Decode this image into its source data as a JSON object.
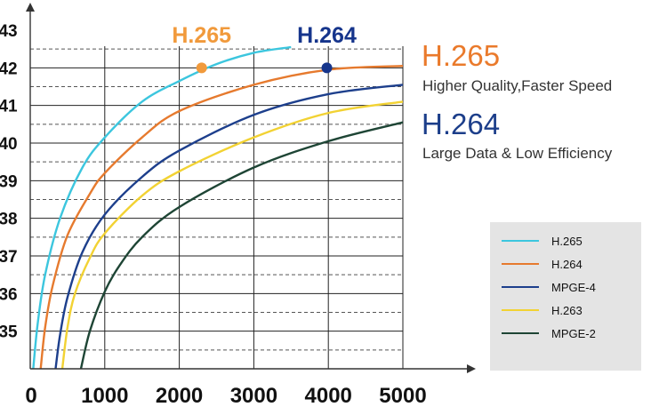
{
  "chart_data": {
    "type": "line",
    "x_ticks": [
      "0",
      "1000",
      "2000",
      "3000",
      "4000",
      "5000"
    ],
    "y_ticks": [
      "35",
      "36",
      "37",
      "38",
      "39",
      "40",
      "41",
      "42",
      "43"
    ],
    "xlim": [
      0,
      5000
    ],
    "ylim": [
      34,
      43
    ],
    "grid": true,
    "legend_position": "bottom-right",
    "series": [
      {
        "name": "H.265",
        "color": "#3cc6de",
        "x": [
          40,
          100,
          200,
          400,
          700,
          1000,
          1500,
          2000,
          2500,
          3000,
          3500
        ],
        "y": [
          34,
          35.2,
          36.5,
          38.0,
          39.35,
          40.15,
          41.1,
          41.65,
          42.1,
          42.4,
          42.55
        ]
      },
      {
        "name": "H.264",
        "color": "#e67a2e",
        "x": [
          140,
          200,
          300,
          500,
          800,
          1000,
          1500,
          2000,
          3000,
          4000,
          5000
        ],
        "y": [
          34,
          35.1,
          36.2,
          37.55,
          38.65,
          39.2,
          40.15,
          40.85,
          41.55,
          41.95,
          42.05
        ]
      },
      {
        "name": "MPGE-4",
        "color": "#1d3f8c",
        "x": [
          340,
          400,
          500,
          700,
          1000,
          1500,
          2000,
          3000,
          4000,
          5000
        ],
        "y": [
          34,
          34.9,
          35.9,
          37.1,
          38.1,
          39.1,
          39.8,
          40.75,
          41.3,
          41.55
        ]
      },
      {
        "name": "H.263",
        "color": "#f2d233",
        "x": [
          430,
          500,
          600,
          800,
          1000,
          1500,
          2000,
          3000,
          4000,
          5000
        ],
        "y": [
          34,
          35.1,
          36.0,
          36.95,
          37.6,
          38.6,
          39.25,
          40.15,
          40.8,
          41.1
        ]
      },
      {
        "name": "MPGE-2",
        "color": "#1e4535",
        "x": [
          680,
          800,
          1000,
          1200,
          1500,
          2000,
          3000,
          4000,
          5000
        ],
        "y": [
          34,
          35.0,
          36.05,
          36.75,
          37.5,
          38.3,
          39.35,
          40.05,
          40.55
        ]
      }
    ],
    "annotations": [
      {
        "text": "H.265",
        "color": "#f19a3c",
        "point_x": 2300,
        "point_y": 42.0
      },
      {
        "text": "H.264",
        "color": "#16358c",
        "point_x": 3980,
        "point_y": 42.0
      }
    ]
  },
  "side_panel": {
    "h265_title": "H.265",
    "h265_subtitle": "Higher Quality,Faster Speed",
    "h264_title": "H.264",
    "h264_subtitle": "Large Data & Low Efficiency"
  },
  "colors": {
    "h265_title": "#ea7a2b",
    "h264_title": "#1c3e8a"
  }
}
